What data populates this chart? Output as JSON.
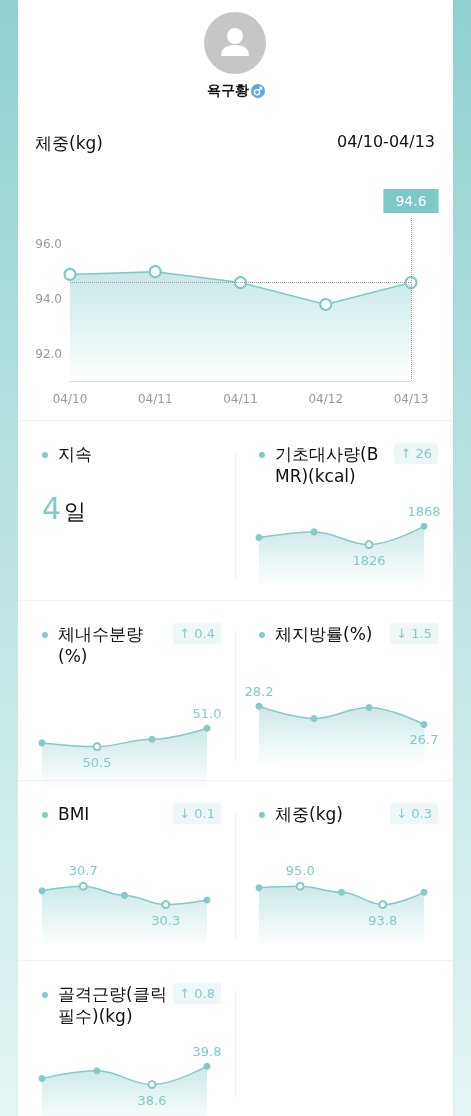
{
  "chart_data": [
    {
      "type": "area",
      "title": "체중(kg)",
      "subtitle": "04/10-04/13",
      "categories": [
        "04/10",
        "04/11",
        "04/11",
        "04/12",
        "04/13"
      ],
      "values": [
        94.9,
        95.0,
        94.6,
        93.8,
        94.6
      ],
      "color": "#7cc9c8",
      "marker": "circle",
      "ylim": [
        91,
        97
      ],
      "yticks": [
        {
          "value": 92,
          "label": "92.0"
        },
        {
          "value": 94,
          "label": "94.0"
        },
        {
          "value": 96,
          "label": "96.0"
        }
      ],
      "grid": false,
      "ref_lines": [
        {
          "axis": "y",
          "value": 94.6,
          "line_style": "dotted",
          "color": "#9a9a9a"
        },
        {
          "axis": "x",
          "value": "04/13",
          "label": "94.6",
          "line_style": "dotted",
          "color": "#9a9a9a"
        }
      ],
      "annotations": [
        "욕구황"
      ]
    },
    {
      "type": "other",
      "title": "지속",
      "annotations": [
        "4",
        "일"
      ]
    },
    {
      "type": "area",
      "title": "기초대사량(BMR)(kcal)",
      "categories": [
        null,
        null,
        null,
        null
      ],
      "values": [
        1842,
        1855,
        1826,
        1868
      ],
      "value_labels": [
        null,
        null,
        "1826",
        "1868"
      ],
      "color": "#86c9c9",
      "marker": "circle",
      "annotations": [
        "↑ 26"
      ]
    },
    {
      "type": "area",
      "title": "체내수분량(%)",
      "categories": [
        null,
        null,
        null,
        null
      ],
      "values": [
        50.6,
        50.5,
        50.7,
        51.0
      ],
      "value_labels": [
        null,
        "50.5",
        null,
        "51.0"
      ],
      "color": "#86c9c9",
      "marker": "circle",
      "annotations": [
        "↑ 0.4"
      ]
    },
    {
      "type": "area",
      "title": "체지방률(%)",
      "categories": [
        null,
        null,
        null,
        null
      ],
      "values": [
        28.2,
        27.2,
        28.1,
        26.7
      ],
      "value_labels": [
        "28.2",
        null,
        null,
        "26.7"
      ],
      "color": "#86c9c9",
      "marker": "circle",
      "annotations": [
        "↓ 1.5"
      ]
    },
    {
      "type": "area",
      "title": "BMI",
      "categories": [
        null,
        null,
        null,
        null,
        null
      ],
      "values": [
        30.6,
        30.7,
        30.5,
        30.3,
        30.4
      ],
      "value_labels": [
        null,
        "30.7",
        null,
        "30.3",
        null
      ],
      "color": "#86c9c9",
      "marker": "circle",
      "annotations": [
        "↓ 0.1"
      ]
    },
    {
      "type": "area",
      "title": "체중(kg)",
      "categories": [
        null,
        null,
        null,
        null,
        null
      ],
      "values": [
        94.9,
        95.0,
        94.6,
        93.8,
        94.6
      ],
      "value_labels": [
        null,
        "95.0",
        null,
        "93.8",
        null
      ],
      "color": "#86c9c9",
      "marker": "circle",
      "annotations": [
        "↓ 0.3"
      ]
    },
    {
      "type": "area",
      "title": "골격근량(클릭필수)(kg)",
      "categories": [
        null,
        null,
        null,
        null
      ],
      "values": [
        39.0,
        39.5,
        38.6,
        39.8
      ],
      "value_labels": [
        null,
        null,
        "38.6",
        "39.8"
      ],
      "color": "#86c9c9",
      "marker": "circle",
      "annotations": [
        "↑ 0.8"
      ]
    }
  ]
}
